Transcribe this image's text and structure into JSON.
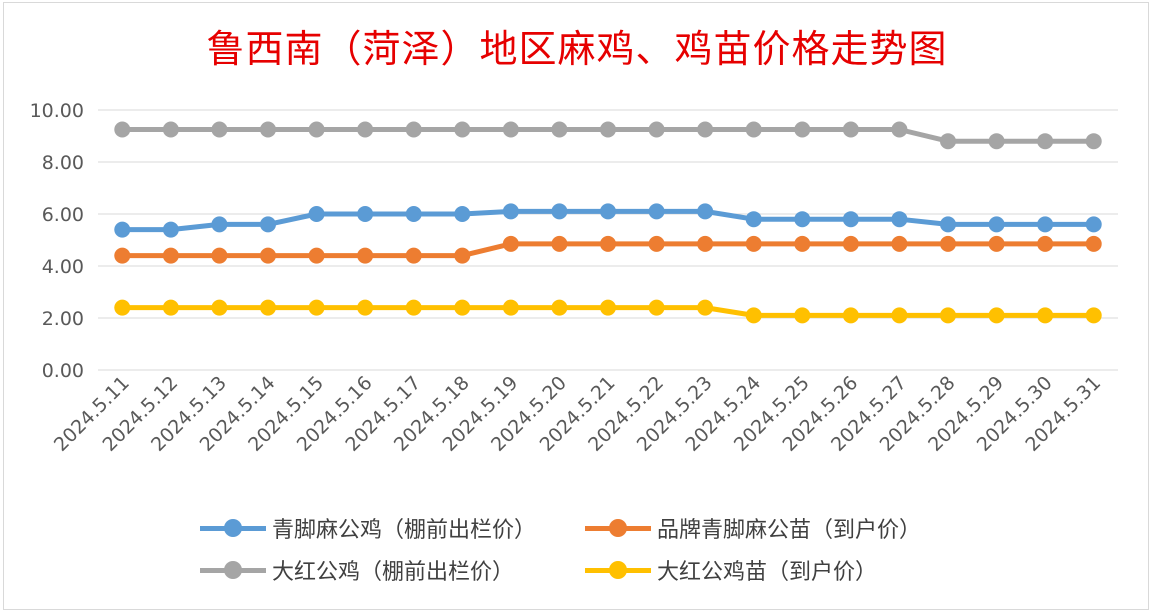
{
  "chart_data": {
    "type": "line",
    "title": "鲁西南（菏泽）地区麻鸡、鸡苗价格走势图",
    "categories": [
      "2024.5.11",
      "2024.5.12",
      "2024.5.13",
      "2024.5.14",
      "2024.5.15",
      "2024.5.16",
      "2024.5.17",
      "2024.5.18",
      "2024.5.19",
      "2024.5.20",
      "2024.5.21",
      "2024.5.22",
      "2024.5.23",
      "2024.5.24",
      "2024.5.25",
      "2024.5.26",
      "2024.5.27",
      "2024.5.28",
      "2024.5.29",
      "2024.5.30",
      "2024.5.31"
    ],
    "ylim": [
      0,
      10
    ],
    "yticks": [
      "0.00",
      "2.00",
      "4.00",
      "6.00",
      "8.00",
      "10.00"
    ],
    "grid": true,
    "legend_position": "bottom",
    "series": [
      {
        "name": "青脚麻公鸡（棚前出栏价）",
        "color": "#5b9bd5",
        "values": [
          5.4,
          5.4,
          5.6,
          5.6,
          6.0,
          6.0,
          6.0,
          6.0,
          6.1,
          6.1,
          6.1,
          6.1,
          6.1,
          5.8,
          5.8,
          5.8,
          5.8,
          5.6,
          5.6,
          5.6,
          5.6
        ]
      },
      {
        "name": "品牌青脚麻公苗（到户价）",
        "color": "#ed7d31",
        "values": [
          4.4,
          4.4,
          4.4,
          4.4,
          4.4,
          4.4,
          4.4,
          4.4,
          4.85,
          4.85,
          4.85,
          4.85,
          4.85,
          4.85,
          4.85,
          4.85,
          4.85,
          4.85,
          4.85,
          4.85,
          4.85
        ]
      },
      {
        "name": "大红公鸡（棚前出栏价）",
        "color": "#a5a5a5",
        "values": [
          9.25,
          9.25,
          9.25,
          9.25,
          9.25,
          9.25,
          9.25,
          9.25,
          9.25,
          9.25,
          9.25,
          9.25,
          9.25,
          9.25,
          9.25,
          9.25,
          9.25,
          8.8,
          8.8,
          8.8,
          8.8
        ]
      },
      {
        "name": "大红公鸡苗（到户价）",
        "color": "#ffc000",
        "values": [
          2.4,
          2.4,
          2.4,
          2.4,
          2.4,
          2.4,
          2.4,
          2.4,
          2.4,
          2.4,
          2.4,
          2.4,
          2.4,
          2.1,
          2.1,
          2.1,
          2.1,
          2.1,
          2.1,
          2.1,
          2.1
        ]
      }
    ]
  }
}
